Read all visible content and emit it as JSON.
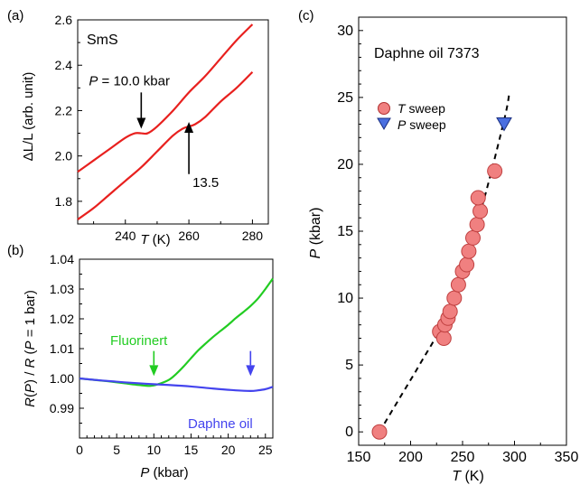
{
  "chart_data": [
    {
      "id": "a",
      "panel_label": "(a)",
      "type": "line",
      "sample_label": "SmS",
      "xlabel": "T",
      "xlabel_unit": " (K)",
      "ylabel": "ΔL/L (arb. unit)",
      "xlim": [
        225,
        285
      ],
      "ylim": [
        1.7,
        2.6
      ],
      "xticks": [
        240,
        260,
        280
      ],
      "yticks": [
        1.8,
        2.0,
        2.2,
        2.4,
        2.6
      ],
      "ytick_labels": [
        "1.8",
        "2.0",
        "2.2",
        "2.4",
        "2.6"
      ],
      "line_color": "#e8201e",
      "series": [
        {
          "x": [
            225,
            230,
            235,
            240,
            243,
            245,
            247,
            250,
            255,
            260,
            265,
            270,
            275,
            280
          ],
          "y": [
            1.93,
            1.98,
            2.03,
            2.08,
            2.1,
            2.1,
            2.1,
            2.13,
            2.2,
            2.28,
            2.35,
            2.43,
            2.51,
            2.58
          ]
        },
        {
          "x": [
            225,
            230,
            235,
            240,
            245,
            250,
            255,
            258,
            260,
            262,
            265,
            270,
            275,
            280
          ],
          "y": [
            1.72,
            1.77,
            1.83,
            1.89,
            1.95,
            2.02,
            2.09,
            2.12,
            2.13,
            2.14,
            2.17,
            2.24,
            2.3,
            2.37
          ]
        }
      ],
      "annotations": [
        {
          "text_prefix": "P",
          "text": " = 10.0 kbar",
          "arrow_x": 245,
          "arrow_from_y": 2.28,
          "arrow_to_y": 2.12
        },
        {
          "text": "13.5",
          "arrow_x": 260,
          "arrow_from_y": 1.92,
          "arrow_to_y": 2.15
        }
      ]
    },
    {
      "id": "b",
      "panel_label": "(b)",
      "type": "line",
      "xlabel": "P",
      "xlabel_unit": " (kbar)",
      "ylabel": "R(P) / R (P = 1 bar)",
      "xlim": [
        0,
        26
      ],
      "ylim": [
        0.98,
        1.04
      ],
      "xticks": [
        0,
        5,
        10,
        15,
        20,
        25
      ],
      "yticks": [
        0.99,
        1.0,
        1.01,
        1.02,
        1.03,
        1.04
      ],
      "ytick_labels": [
        "0.99",
        "1.00",
        "1.01",
        "1.02",
        "1.03",
        "1.04"
      ],
      "series": [
        {
          "name": "Fluorinert",
          "color": "#22cc22",
          "x": [
            0,
            2,
            4,
            6,
            8,
            9.5,
            10.5,
            12,
            13,
            14,
            15,
            16,
            17,
            18,
            19,
            20,
            21,
            22,
            23,
            24,
            25,
            26
          ],
          "y": [
            1.0,
            0.9995,
            0.999,
            0.9984,
            0.9978,
            0.9975,
            0.998,
            0.9995,
            1.0015,
            1.004,
            1.0068,
            1.0095,
            1.0118,
            1.014,
            1.016,
            1.018,
            1.0202,
            1.0222,
            1.0243,
            1.0268,
            1.03,
            1.0335
          ]
        },
        {
          "name": "Daphne oil",
          "color": "#4444ee",
          "x": [
            0,
            3,
            6,
            9,
            12,
            15,
            18,
            21,
            23,
            24,
            25,
            26
          ],
          "y": [
            1.0,
            0.9993,
            0.9987,
            0.9982,
            0.9978,
            0.9973,
            0.9966,
            0.996,
            0.9958,
            0.996,
            0.9964,
            0.9972
          ]
        }
      ],
      "annotations": [
        {
          "text": "Fluorinert",
          "color": "#22cc22",
          "arrow_x": 10,
          "arrow_from_y": 1.0092,
          "arrow_to_y": 1.0008
        },
        {
          "text": "Daphne oil",
          "color": "#4444ee",
          "arrow_x": 23,
          "arrow_from_y": 1.0092,
          "arrow_to_y": 1.0008
        }
      ]
    },
    {
      "id": "c",
      "panel_label": "(c)",
      "type": "scatter",
      "title": "Daphne oil 7373",
      "xlabel": "T",
      "xlabel_unit": " (K)",
      "ylabel": "P",
      "ylabel_unit": " (kbar)",
      "xlim": [
        150,
        350
      ],
      "ylim": [
        -1,
        31
      ],
      "xticks": [
        150,
        200,
        250,
        300,
        350
      ],
      "yticks": [
        0,
        5,
        10,
        15,
        20,
        25,
        30
      ],
      "legend": [
        {
          "marker": "circle",
          "prefix": "T",
          "text": " sweep",
          "color": "#f08080"
        },
        {
          "marker": "triangle",
          "prefix": "P",
          "text": " sweep",
          "color": "#4a6fe0"
        }
      ],
      "t_sweep": {
        "color": "#f08080",
        "points": [
          [
            170,
            0.0
          ],
          [
            228,
            7.5
          ],
          [
            232,
            7.0
          ],
          [
            233,
            8.0
          ],
          [
            236,
            8.5
          ],
          [
            238,
            9.0
          ],
          [
            242,
            10.0
          ],
          [
            246,
            11.0
          ],
          [
            250,
            12.0
          ],
          [
            254,
            12.5
          ],
          [
            256,
            13.5
          ],
          [
            260,
            14.5
          ],
          [
            264,
            15.5
          ],
          [
            267,
            16.5
          ],
          [
            265,
            17.5
          ],
          [
            281,
            19.5
          ]
        ]
      },
      "p_sweep": {
        "color": "#4a6fe0",
        "points": [
          [
            290,
            23.0
          ]
        ]
      },
      "fit": {
        "x": [
          170,
          190,
          210,
          230,
          250,
          270,
          290,
          295
        ],
        "y": [
          0,
          2.6,
          5.2,
          8.0,
          12.2,
          17.2,
          23.3,
          25.3
        ]
      }
    }
  ]
}
